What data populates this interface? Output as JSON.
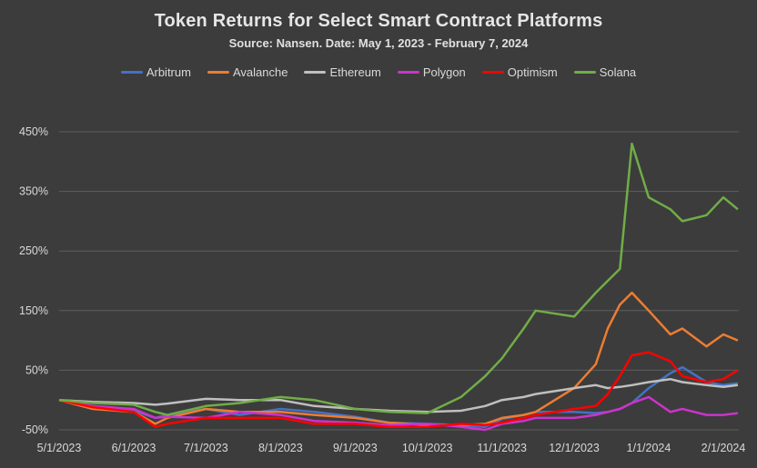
{
  "chart_data": {
    "type": "line",
    "title": "Token Returns for Select Smart Contract Platforms",
    "subtitle": "Source: Nansen. Date: May 1, 2023 - February 7, 2024",
    "xlabel": "",
    "ylabel": "",
    "ylim": [
      -50,
      450
    ],
    "yticks": [
      "450%",
      "350%",
      "250%",
      "150%",
      "50%",
      "-50%"
    ],
    "ytick_values": [
      450,
      350,
      250,
      150,
      50,
      -50
    ],
    "xticks": [
      "5/1/2023",
      "6/1/2023",
      "7/1/2023",
      "8/1/2023",
      "9/1/2023",
      "10/1/2023",
      "11/1/2023",
      "12/1/2023",
      "1/1/2024",
      "2/1/2024"
    ],
    "grid": true,
    "legend_position": "top",
    "x": [
      "2023-05-01",
      "2023-05-15",
      "2023-06-01",
      "2023-06-10",
      "2023-06-15",
      "2023-07-01",
      "2023-07-15",
      "2023-08-01",
      "2023-08-15",
      "2023-09-01",
      "2023-09-15",
      "2023-10-01",
      "2023-10-15",
      "2023-10-25",
      "2023-11-01",
      "2023-11-10",
      "2023-11-15",
      "2023-12-01",
      "2023-12-10",
      "2023-12-15",
      "2023-12-20",
      "2023-12-25",
      "2024-01-01",
      "2024-01-10",
      "2024-01-15",
      "2024-01-25",
      "2024-02-01",
      "2024-02-07"
    ],
    "series": [
      {
        "name": "Arbitrum",
        "color": "#4472c4",
        "values": [
          0,
          -10,
          -18,
          -30,
          -25,
          -15,
          -25,
          -15,
          -20,
          -28,
          -38,
          -40,
          -42,
          -45,
          -32,
          -25,
          -20,
          -20,
          -22,
          -20,
          -15,
          -5,
          20,
          45,
          55,
          30,
          25,
          28
        ]
      },
      {
        "name": "Avalanche",
        "color": "#ed7d31",
        "values": [
          0,
          -15,
          -20,
          -40,
          -30,
          -15,
          -20,
          -20,
          -25,
          -30,
          -38,
          -42,
          -42,
          -40,
          -30,
          -25,
          -20,
          20,
          60,
          120,
          160,
          180,
          150,
          110,
          120,
          90,
          110,
          100
        ]
      },
      {
        "name": "Ethereum",
        "color": "#bfbfbf",
        "values": [
          0,
          -3,
          -5,
          -8,
          -6,
          2,
          0,
          0,
          -10,
          -15,
          -18,
          -20,
          -18,
          -10,
          0,
          5,
          10,
          20,
          25,
          20,
          22,
          25,
          30,
          35,
          30,
          25,
          22,
          25
        ]
      },
      {
        "name": "Polygon",
        "color": "#cc33cc",
        "values": [
          0,
          -10,
          -15,
          -30,
          -28,
          -30,
          -20,
          -25,
          -35,
          -38,
          -42,
          -40,
          -45,
          -50,
          -40,
          -35,
          -30,
          -30,
          -25,
          -20,
          -15,
          -5,
          5,
          -20,
          -15,
          -25,
          -25,
          -22
        ]
      },
      {
        "name": "Optimism",
        "color": "#ff0000",
        "values": [
          0,
          -12,
          -20,
          -45,
          -40,
          -30,
          -30,
          -30,
          -40,
          -40,
          -45,
          -45,
          -40,
          -42,
          -38,
          -30,
          -25,
          -15,
          -10,
          10,
          40,
          75,
          80,
          65,
          40,
          30,
          35,
          50
        ]
      },
      {
        "name": "Solana",
        "color": "#70ad47",
        "values": [
          0,
          -5,
          -8,
          -20,
          -25,
          -10,
          -5,
          5,
          0,
          -15,
          -20,
          -22,
          5,
          40,
          70,
          120,
          150,
          140,
          180,
          200,
          220,
          430,
          340,
          320,
          300,
          310,
          340,
          320
        ]
      }
    ]
  }
}
